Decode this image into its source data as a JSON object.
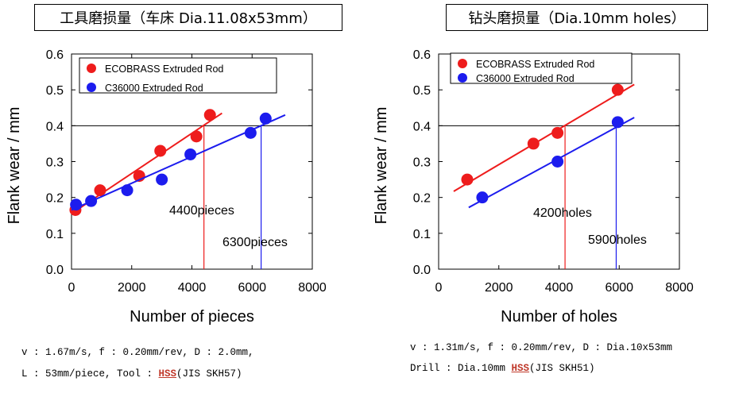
{
  "chart_data": [
    {
      "type": "scatter",
      "title": "工具磨损量（车床 Dia.11.08x53mm）",
      "xlabel": "Number of pieces",
      "ylabel": "Flank wear / mm",
      "xlim": [
        0,
        8000
      ],
      "ylim": [
        0,
        0.6
      ],
      "xticks": [
        "0",
        "2000",
        "4000",
        "6000",
        "8000"
      ],
      "yticks": [
        "0.0",
        "0.1",
        "0.2",
        "0.3",
        "0.4",
        "0.5",
        "0.6"
      ],
      "legend_position": "top-left",
      "threshold": 0.4,
      "series": [
        {
          "name": "ECOBRASS Extruded Rod",
          "color": "#ee1c1c",
          "points": [
            [
              130,
              0.165
            ],
            [
              950,
              0.22
            ],
            [
              2250,
              0.26
            ],
            [
              2950,
              0.33
            ],
            [
              4150,
              0.37
            ],
            [
              4600,
              0.43
            ]
          ],
          "fit": [
            [
              0,
              0.155
            ],
            [
              5000,
              0.435
            ]
          ],
          "crossing_x": 4400,
          "crossing_label": "4400pieces"
        },
        {
          "name": "C36000 Extruded Rod",
          "color": "#1c1cee",
          "points": [
            [
              150,
              0.18
            ],
            [
              650,
              0.19
            ],
            [
              1850,
              0.22
            ],
            [
              3000,
              0.25
            ],
            [
              3950,
              0.32
            ],
            [
              5950,
              0.38
            ],
            [
              6450,
              0.42
            ]
          ],
          "fit": [
            [
              0,
              0.165
            ],
            [
              7100,
              0.43
            ]
          ],
          "crossing_x": 6300,
          "crossing_label": "6300pieces"
        }
      ]
    },
    {
      "type": "scatter",
      "title": "钻头磨损量（Dia.10mm holes）",
      "xlabel": "Number of holes",
      "ylabel": "Flank wear / mm",
      "xlim": [
        0,
        8000
      ],
      "ylim": [
        0,
        0.6
      ],
      "xticks": [
        "0",
        "2000",
        "4000",
        "6000",
        "8000"
      ],
      "yticks": [
        "0.0",
        "0.1",
        "0.2",
        "0.3",
        "0.4",
        "0.5",
        "0.6"
      ],
      "legend_position": "top-left",
      "threshold": 0.4,
      "series": [
        {
          "name": "ECOBRASS Extruded Rod",
          "color": "#ee1c1c",
          "points": [
            [
              950,
              0.25
            ],
            [
              3150,
              0.35
            ],
            [
              3950,
              0.38
            ],
            [
              5950,
              0.5
            ]
          ],
          "fit": [
            [
              500,
              0.217
            ],
            [
              6500,
              0.515
            ]
          ],
          "crossing_x": 4200,
          "crossing_label": "4200holes"
        },
        {
          "name": "C36000 Extruded Rod",
          "color": "#1c1cee",
          "points": [
            [
              1450,
              0.2
            ],
            [
              3950,
              0.3
            ],
            [
              5950,
              0.41
            ]
          ],
          "fit": [
            [
              1000,
              0.172
            ],
            [
              6500,
              0.423
            ]
          ],
          "crossing_x": 5900,
          "crossing_label": "5900holes"
        }
      ]
    }
  ],
  "notes": {
    "left_line1": "v : 1.67m/s, f : 0.20mm/rev, D : 2.0mm,",
    "left_line2_pre": "L : 53mm/piece, Tool : ",
    "left_hss": "HSS",
    "left_line2_post": "(JIS SKH57)",
    "right_line1": "v : 1.31m/s, f : 0.20mm/rev, D : Dia.10x53mm",
    "right_line2_pre": "Drill : Dia.10mm ",
    "right_hss": "HSS",
    "right_line2_post": "(JIS SKH51)"
  }
}
